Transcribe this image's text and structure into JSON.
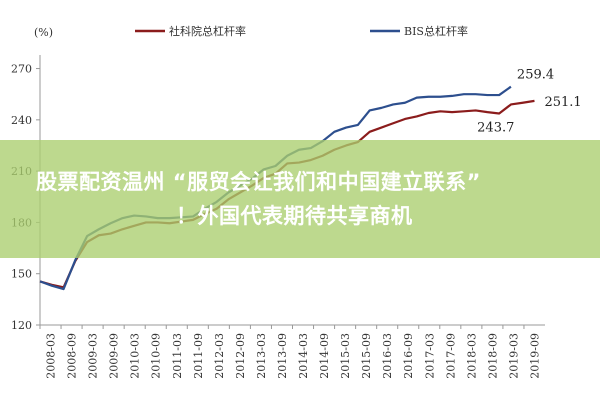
{
  "chart_data": {
    "type": "line",
    "unit_label": "(%)",
    "yticks": [
      120,
      150,
      180,
      210,
      240,
      270
    ],
    "ylim": [
      120,
      275
    ],
    "x_labels": [
      "2008-03",
      "2008-09",
      "2009-03",
      "2009-09",
      "2010-03",
      "2010-09",
      "2011-03",
      "2011-09",
      "2012-03",
      "2012-09",
      "2013-03",
      "2013-09",
      "2014-03",
      "2014-09",
      "2015-03",
      "2015-09",
      "2016-03",
      "2016-09",
      "2017-03",
      "2017-09",
      "2018-03",
      "2018-09",
      "2019-03",
      "2019-09"
    ],
    "series": [
      {
        "name": "社科院总杠杆率",
        "color": "#8b1c1c",
        "values": [
          145.5,
          143.5,
          142.0,
          157.5,
          168.5,
          172.5,
          173.5,
          176.0,
          178.0,
          180.0,
          180.0,
          179.5,
          180.5,
          181.5,
          185.0,
          188.0,
          193.5,
          197.5,
          201.5,
          206.0,
          208.5,
          214.5,
          215.0,
          216.5,
          219.0,
          222.5,
          225.0,
          227.0,
          233.0,
          235.5,
          238.0,
          240.5,
          242.0,
          244.0,
          245.0,
          244.5,
          245.0,
          245.5,
          244.5,
          243.7,
          249.0,
          250.0,
          251.1
        ]
      },
      {
        "name": "BIS总杠杆率",
        "color": "#2d4f8e",
        "values": [
          145.5,
          143.0,
          141.0,
          158.0,
          172.0,
          176.0,
          179.5,
          182.5,
          184.0,
          183.5,
          182.5,
          182.5,
          183.0,
          183.5,
          188.0,
          192.0,
          197.5,
          201.5,
          205.5,
          211.0,
          213.0,
          219.0,
          222.5,
          223.5,
          227.5,
          233.0,
          235.5,
          237.0,
          245.5,
          247.0,
          249.0,
          250.0,
          253.0,
          253.5,
          253.5,
          254.0,
          255.0,
          255.0,
          254.5,
          254.5,
          259.4
        ]
      }
    ],
    "annotations": [
      {
        "text": "259.4",
        "series": 1,
        "point": "last"
      },
      {
        "text": "251.1",
        "series": 0,
        "point": "last"
      },
      {
        "text": "243.7",
        "series": 0,
        "point": 39
      }
    ]
  },
  "banner": {
    "line1": "股票配资温州 “服贸会让我们和中国建立联系”",
    "line2": "！外国代表期待共享商机"
  }
}
